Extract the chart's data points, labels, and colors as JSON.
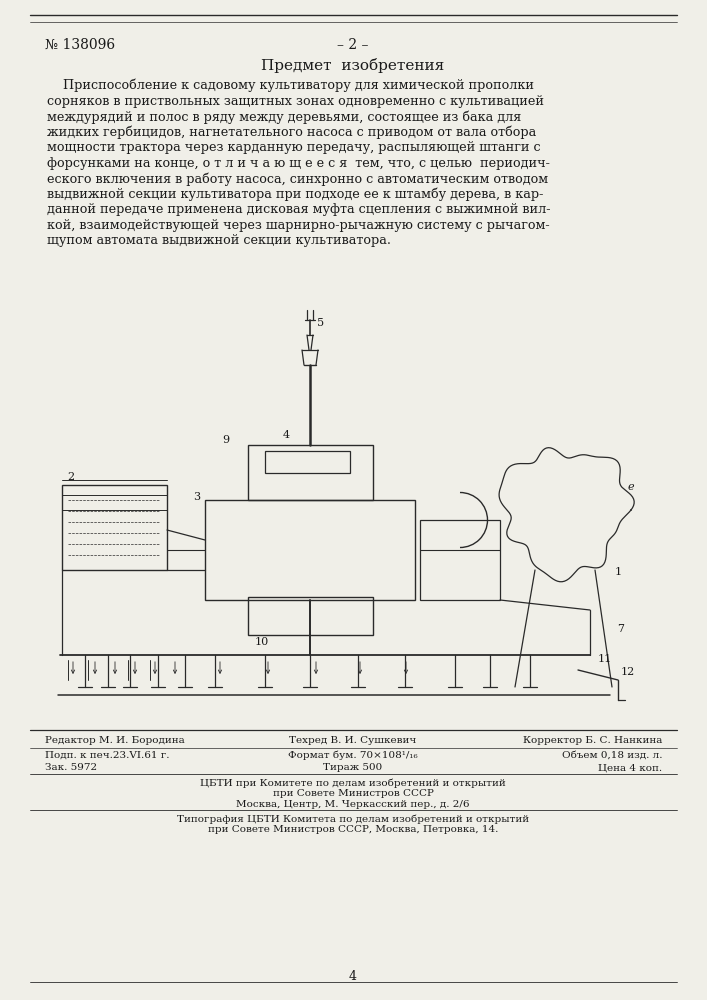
{
  "bg_color": "#f0efe8",
  "page_color": "#f0efe8",
  "title_left": "№ 138096",
  "title_center": "– 2 –",
  "section_title": "Предмет  изобретения",
  "body_text": [
    "    Приспособление к садовому культиватору для химической прополки",
    "сорняков в приствольных защитных зонах одновременно с культивацией",
    "междурядий и полос в ряду между деревьями, состоящее из бака для",
    "жидких гербицидов, нагнетательного насоса с приводом от вала отбора",
    "мощности трактора через карданную передачу, распыляющей штанги с",
    "форсунками на конце, о т л и ч а ю щ е е с я  тем, что, с целью  периодич-",
    "еского включения в работу насоса, синхронно с автоматическим отводом",
    "выдвижной секции культиватора при подходе ее к штамбу дерева, в кар-",
    "данной передаче применена дисковая муфта сцепления с выжимной вил-",
    "кой, взаимодействующей через шарнирно-рычажную систему с рычагом-",
    "щупом автомата выдвижной секции культиватора."
  ],
  "footer_line1_left": "Редактор М. И. Бородина",
  "footer_line1_center": "Техред В. И. Сушкевич",
  "footer_line1_right": "Корректор Б. С. Нанкина",
  "footer_line2_left": "Подп. к печ.23.VI.61 г.",
  "footer_line2_center": "Формат бум. 70×108¹/₁₆",
  "footer_line2_right": "Объем 0,18 изд. л.",
  "footer_line3_left": "Зак. 5972",
  "footer_line3_center": "Тираж 500",
  "footer_line3_right": "Цена 4 коп.",
  "footer_cbti1": "ЦБТИ при Комитете по делам изобретений и открытий",
  "footer_cbti2": "при Совете Министров СССР",
  "footer_cbti3": "Москва, Центр, М. Черкасский пер., д. 2/6",
  "footer_typo1": "Типография ЦБТИ Комитета по делам изобретений и открытий",
  "footer_typo2": "при Совете Министров СССР, Москва, Петровка, 14.",
  "page_number": "4",
  "text_color": "#1a1a1a",
  "line_color": "#2a2a2a"
}
